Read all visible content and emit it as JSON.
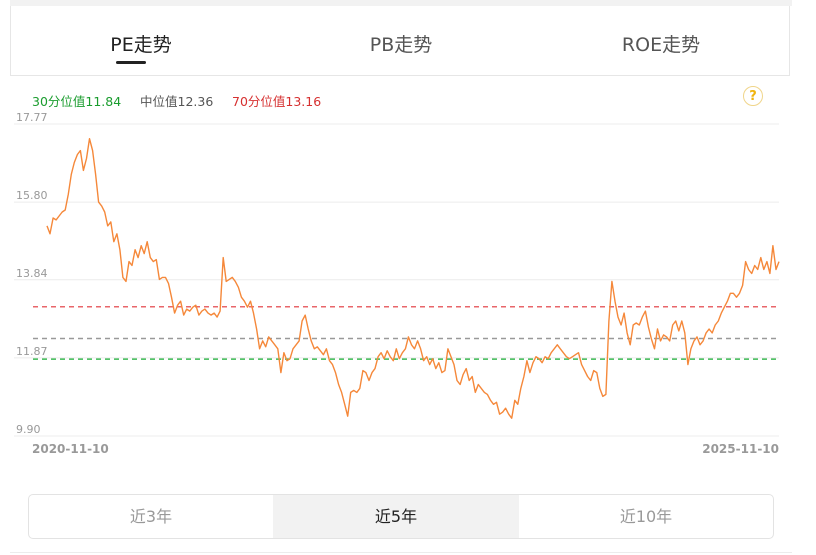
{
  "tabs": [
    {
      "label": "PE走势",
      "active": true
    },
    {
      "label": "PB走势",
      "active": false
    },
    {
      "label": "ROE走势",
      "active": false
    }
  ],
  "legend": {
    "p30": "30分位值11.84",
    "median": "中位值12.36",
    "p70": "70分位值13.16"
  },
  "help_icon": "?",
  "colors": {
    "series": "#f5883a",
    "p30": "#3cba54",
    "median": "#999999",
    "p70": "#e8666a"
  },
  "chart_data": {
    "type": "line",
    "y_ticks": [
      "17.77",
      "15.80",
      "13.84",
      "11.87",
      "9.90"
    ],
    "ylim": [
      9.9,
      17.77
    ],
    "x_labels": {
      "start": "2020-11-10",
      "end": "2025-11-10"
    },
    "reference_lines": [
      {
        "name": "70分位值",
        "value": 13.16
      },
      {
        "name": "中位值",
        "value": 12.36
      },
      {
        "name": "30分位值",
        "value": 11.84
      }
    ],
    "series": [
      {
        "values": [
          15.2,
          15.0,
          15.4,
          15.35,
          15.45,
          15.55,
          15.6,
          16.0,
          16.5,
          16.8,
          17.0,
          17.1,
          16.6,
          16.9,
          17.4,
          17.1,
          16.5,
          15.8,
          15.7,
          15.55,
          15.2,
          15.3,
          14.8,
          15.0,
          14.6,
          13.9,
          13.8,
          14.3,
          14.2,
          14.6,
          14.4,
          14.7,
          14.5,
          14.8,
          14.4,
          14.3,
          14.35,
          13.85,
          13.9,
          13.9,
          13.75,
          13.4,
          13.0,
          13.2,
          13.3,
          12.95,
          13.1,
          13.05,
          13.15,
          13.2,
          12.95,
          13.05,
          13.1,
          13.0,
          12.95,
          13.0,
          12.9,
          13.05,
          14.4,
          13.8,
          13.85,
          13.9,
          13.8,
          13.65,
          13.4,
          13.3,
          13.15,
          13.3,
          13.0,
          12.6,
          12.1,
          12.3,
          12.15,
          12.4,
          12.3,
          12.2,
          12.1,
          11.5,
          12.0,
          11.8,
          11.85,
          12.1,
          12.2,
          12.3,
          12.8,
          12.95,
          12.6,
          12.3,
          12.1,
          12.15,
          12.05,
          11.95,
          12.1,
          11.8,
          11.7,
          11.5,
          11.2,
          11.0,
          10.7,
          10.4,
          11.0,
          11.05,
          11.0,
          11.1,
          11.55,
          11.5,
          11.3,
          11.5,
          11.6,
          11.9,
          12.0,
          11.85,
          12.05,
          11.9,
          11.8,
          12.1,
          11.85,
          12.0,
          12.1,
          12.4,
          12.2,
          12.1,
          12.3,
          12.1,
          11.8,
          11.9,
          11.7,
          11.85,
          11.6,
          11.75,
          11.5,
          11.55,
          12.1,
          11.9,
          11.7,
          11.3,
          11.2,
          11.45,
          11.6,
          11.3,
          11.4,
          11.0,
          11.2,
          11.1,
          11.0,
          10.95,
          10.8,
          10.7,
          10.75,
          10.45,
          10.5,
          10.6,
          10.45,
          10.35,
          10.8,
          10.7,
          11.1,
          11.4,
          11.8,
          11.5,
          11.75,
          11.9,
          11.85,
          11.75,
          11.9,
          11.85,
          12.0,
          12.1,
          12.2,
          12.1,
          12.0,
          11.9,
          11.85,
          11.9,
          11.95,
          12.0,
          11.7,
          11.55,
          11.4,
          11.3,
          11.55,
          11.5,
          11.1,
          10.9,
          10.95,
          12.8,
          13.8,
          13.3,
          12.9,
          12.7,
          13.0,
          12.5,
          12.2,
          12.7,
          12.75,
          12.7,
          12.9,
          13.05,
          12.65,
          12.35,
          12.1,
          12.6,
          12.3,
          12.45,
          12.4,
          12.3,
          12.7,
          12.8,
          12.55,
          12.8,
          12.5,
          11.7,
          12.1,
          12.3,
          12.4,
          12.2,
          12.3,
          12.5,
          12.6,
          12.5,
          12.7,
          12.8,
          13.0,
          13.15,
          13.3,
          13.5,
          13.5,
          13.4,
          13.5,
          13.7,
          14.3,
          14.1,
          14.0,
          14.2,
          14.1,
          14.4,
          14.1,
          14.3,
          14.0,
          14.7,
          14.1,
          14.3
        ]
      }
    ]
  },
  "range_options": [
    {
      "label": "近3年",
      "active": false
    },
    {
      "label": "近5年",
      "active": true
    },
    {
      "label": "近10年",
      "active": false
    }
  ]
}
